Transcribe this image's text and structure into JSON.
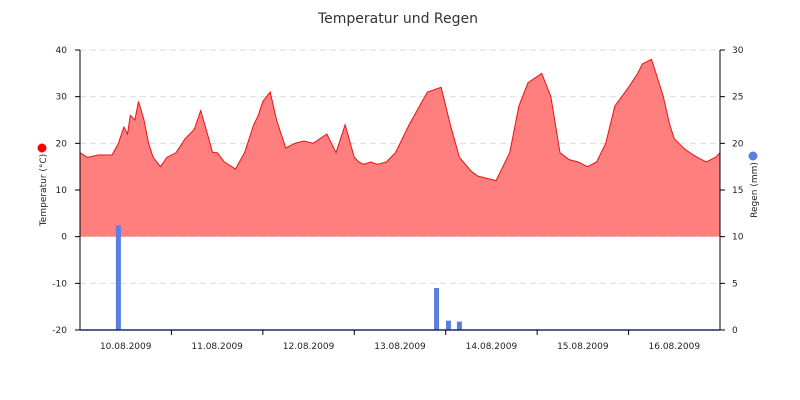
{
  "chart_data": {
    "type": "area",
    "title": "Temperatur und Regen",
    "x_axis": {
      "tick_labels": [
        "10.08.2009",
        "11.08.2009",
        "12.08.2009",
        "13.08.2009",
        "14.08.2009",
        "15.08.2009",
        "16.08.2009"
      ],
      "range": [
        0,
        7
      ]
    },
    "y_left": {
      "label": "Temperatur (°C)",
      "ylim": [
        -20,
        40
      ],
      "ticks": [
        -20,
        -10,
        0,
        10,
        20,
        30,
        40
      ],
      "marker_color": "#ff0000"
    },
    "y_right": {
      "label": "Regen (mm)",
      "ylim": [
        0,
        30
      ],
      "ticks": [
        0,
        5,
        10,
        15,
        20,
        25,
        30
      ],
      "marker_color": "#5b7fe0"
    },
    "grid": "horizontal dashed",
    "series": [
      {
        "kind": "area",
        "color": "#ff7f7f",
        "line_color": "#ee1111",
        "x": [
          0,
          0.08,
          0.2,
          0.35,
          0.42,
          0.48,
          0.52,
          0.55,
          0.6,
          0.64,
          0.7,
          0.75,
          0.8,
          0.88,
          0.95,
          1.05,
          1.15,
          1.25,
          1.32,
          1.38,
          1.45,
          1.5,
          1.58,
          1.7,
          1.8,
          1.9,
          1.95,
          2.0,
          2.08,
          2.15,
          2.25,
          2.35,
          2.45,
          2.55,
          2.7,
          2.8,
          2.9,
          3.0,
          3.05,
          3.1,
          3.18,
          3.25,
          3.35,
          3.45,
          3.6,
          3.8,
          3.95,
          4.05,
          4.15,
          4.28,
          4.35,
          4.45,
          4.55,
          4.7,
          4.8,
          4.9,
          5.05,
          5.15,
          5.25,
          5.35,
          5.45,
          5.5,
          5.55,
          5.65,
          5.75,
          5.85,
          6.0,
          6.1,
          6.15,
          6.25,
          6.3,
          6.38,
          6.45,
          6.5,
          6.55,
          6.6,
          6.67,
          6.75,
          6.85,
          6.95,
          7.0
        ],
        "values": [
          18,
          17,
          17.5,
          17.5,
          20,
          23.5,
          22,
          26,
          25,
          29,
          25,
          20,
          17,
          15,
          17,
          18,
          21,
          23,
          27,
          23,
          18,
          18,
          16,
          14.5,
          18,
          24,
          26,
          29,
          31,
          25,
          19,
          20,
          20.5,
          20,
          22,
          18,
          24,
          17,
          16,
          15.5,
          16,
          15.5,
          16,
          18,
          24,
          31,
          32,
          24,
          17,
          14,
          13,
          12.5,
          12,
          18,
          28,
          33,
          35,
          30,
          18,
          16.5,
          16,
          15.5,
          15,
          16,
          20,
          28,
          32,
          35,
          37,
          38,
          35,
          30,
          24,
          21,
          20,
          19,
          18,
          17,
          16,
          17,
          18
        ]
      },
      {
        "kind": "bar",
        "color": "#5b7fe0",
        "axis": "right",
        "x": [
          0.42,
          3.9,
          4.03,
          4.15
        ],
        "values": [
          11.2,
          4.5,
          1,
          0.9
        ]
      }
    ]
  }
}
